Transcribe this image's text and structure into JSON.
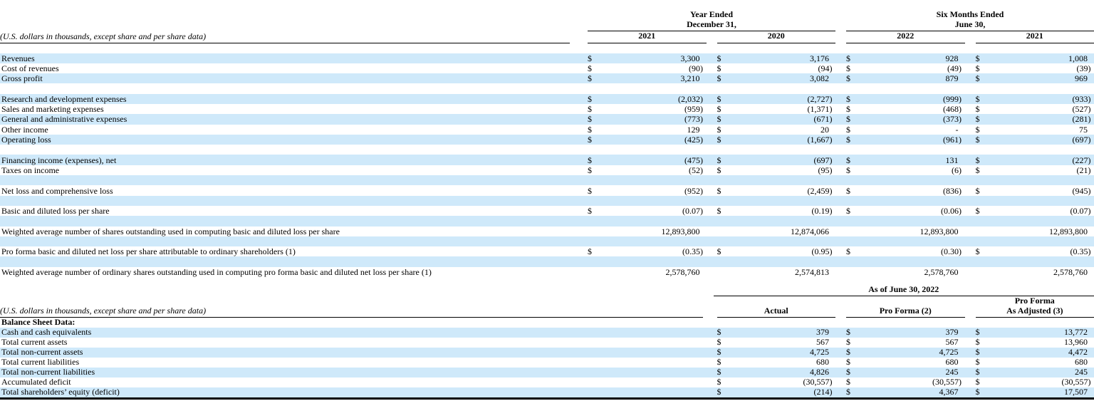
{
  "currency_symbol": "$",
  "income_statement": {
    "note": "(U.S. dollars in thousands, except share and per share data)",
    "column_groups": [
      {
        "title": "Year Ended\nDecember 31,",
        "columns": [
          "2021",
          "2020"
        ]
      },
      {
        "title": "Six Months Ended\nJune 30,",
        "columns": [
          "2022",
          "2021"
        ]
      }
    ],
    "rows": [
      {
        "label": "Revenues",
        "dollar": true,
        "shade": true,
        "values": [
          "3,300",
          "3,176",
          "928",
          "1,008"
        ]
      },
      {
        "label": "Cost of revenues",
        "dollar": true,
        "shade": false,
        "values": [
          "(90)",
          "(94)",
          "(49)",
          "(39)"
        ]
      },
      {
        "label": "Gross profit",
        "dollar": true,
        "shade": true,
        "values": [
          "3,210",
          "3,082",
          "879",
          "969"
        ]
      },
      {
        "blank": true,
        "shade": false
      },
      {
        "label": "Research and development expenses",
        "dollar": true,
        "shade": true,
        "values": [
          "(2,032)",
          "(2,727)",
          "(999)",
          "(933)"
        ]
      },
      {
        "label": "Sales and marketing expenses",
        "dollar": true,
        "shade": false,
        "values": [
          "(959)",
          "(1,371)",
          "(468)",
          "(527)"
        ]
      },
      {
        "label": "General and administrative expenses",
        "dollar": true,
        "shade": true,
        "values": [
          "(773)",
          "(671)",
          "(373)",
          "(281)"
        ]
      },
      {
        "label": "Other income",
        "dollar": true,
        "shade": false,
        "values": [
          "129",
          "20",
          "-",
          "75"
        ]
      },
      {
        "label": "Operating loss",
        "dollar": true,
        "shade": true,
        "values": [
          "(425)",
          "(1,667)",
          "(961)",
          "(697)"
        ]
      },
      {
        "blank": true,
        "shade": false
      },
      {
        "label": "Financing income (expenses), net",
        "dollar": true,
        "shade": true,
        "values": [
          "(475)",
          "(697)",
          "131",
          "(227)"
        ]
      },
      {
        "label": "Taxes on income",
        "dollar": true,
        "shade": false,
        "values": [
          "(52)",
          "(95)",
          "(6)",
          "(21)"
        ]
      },
      {
        "blank": true,
        "shade": true
      },
      {
        "label": "Net loss and comprehensive loss",
        "dollar": true,
        "shade": false,
        "values": [
          "(952)",
          "(2,459)",
          "(836)",
          "(945)"
        ]
      },
      {
        "blank": true,
        "shade": true
      },
      {
        "label": "Basic and diluted loss per share",
        "dollar": true,
        "shade": false,
        "values": [
          "(0.07)",
          "(0.19)",
          "(0.06)",
          "(0.07)"
        ]
      },
      {
        "blank": true,
        "shade": true
      },
      {
        "label": "Weighted average number of shares outstanding used in computing basic and diluted loss per share",
        "dollar": false,
        "shade": false,
        "values": [
          "12,893,800",
          "12,874,066",
          "12,893,800",
          "12,893,800"
        ]
      },
      {
        "blank": true,
        "shade": true
      },
      {
        "label": "Pro forma basic and diluted net loss per share attributable to ordinary shareholders (1)",
        "dollar": true,
        "shade": false,
        "values": [
          "(0.35)",
          "(0.95)",
          "(0.30)",
          "(0.35)"
        ]
      },
      {
        "blank": true,
        "shade": true
      },
      {
        "label": "Weighted average number of ordinary shares outstanding used in computing pro forma basic and diluted net loss per share (1)",
        "dollar": false,
        "shade": false,
        "values": [
          "2,578,760",
          "2,574,813",
          "2,578,760",
          "2,578,760"
        ]
      }
    ]
  },
  "balance_sheet": {
    "note": "(U.S. dollars in thousands, except share and per share data)",
    "group_title": "As of June 30, 2022",
    "columns": [
      "Actual",
      "Pro Forma (2)",
      "Pro Forma\nAs Adjusted (3)"
    ],
    "rows": [
      {
        "label": "Balance Sheet Data:",
        "bold": true,
        "dollar": false,
        "shade": false,
        "values": [
          "",
          "",
          ""
        ]
      },
      {
        "label": "Cash and cash equivalents",
        "dollar": true,
        "shade": true,
        "values": [
          "379",
          "379",
          "13,772"
        ]
      },
      {
        "label": "Total current assets",
        "dollar": true,
        "shade": false,
        "values": [
          "567",
          "567",
          "13,960"
        ]
      },
      {
        "label": "Total non-current assets",
        "dollar": true,
        "shade": true,
        "values": [
          "4,725",
          "4,725",
          "4,472"
        ]
      },
      {
        "label": "Total current liabilities",
        "dollar": true,
        "shade": false,
        "values": [
          "680",
          "680",
          "680"
        ]
      },
      {
        "label": "Total non-current liabilities",
        "dollar": true,
        "shade": true,
        "values": [
          "4,826",
          "245",
          "245"
        ]
      },
      {
        "label": "Accumulated deficit",
        "dollar": true,
        "shade": false,
        "values": [
          "(30,557)",
          "(30,557)",
          "(30,557)"
        ]
      },
      {
        "label": "Total shareholders’ equity (deficit)",
        "dollar": true,
        "shade": true,
        "values": [
          "(214)",
          "4,367",
          "17,507"
        ]
      }
    ]
  }
}
